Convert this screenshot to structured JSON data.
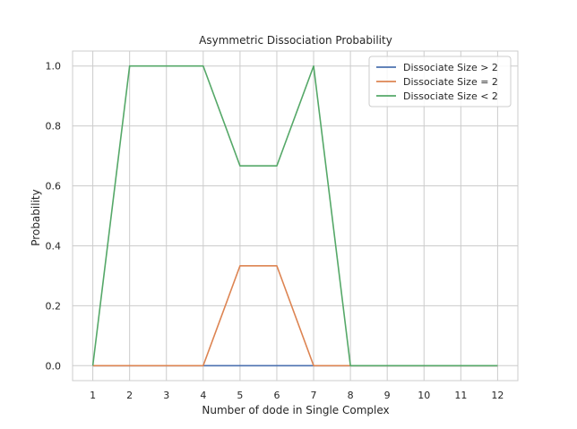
{
  "chart_data": {
    "type": "line",
    "title": "Asymmetric Dissociation Probability",
    "xlabel": "Number of dode in Single Complex",
    "ylabel": "Probability",
    "x": [
      1,
      2,
      3,
      4,
      5,
      6,
      7,
      8,
      9,
      10,
      11,
      12
    ],
    "xlim": [
      0.45,
      12.55
    ],
    "ylim": [
      -0.05,
      1.05
    ],
    "yticks": [
      0.0,
      0.2,
      0.4,
      0.6,
      0.8,
      1.0
    ],
    "ytick_labels": [
      "0.0",
      "0.2",
      "0.4",
      "0.6",
      "0.8",
      "1.0"
    ],
    "grid": true,
    "legend_position": "top-right",
    "series": [
      {
        "name": "Dissociate Size > 2",
        "color": "#4c72b0",
        "values": [
          0,
          0,
          0,
          0,
          0,
          0,
          0,
          0,
          0,
          0,
          0,
          0
        ]
      },
      {
        "name": "Dissociate Size = 2",
        "color": "#dd8452",
        "values": [
          0,
          0,
          0,
          0,
          0.3333,
          0.3333,
          0,
          0,
          0,
          0,
          0,
          0
        ]
      },
      {
        "name": "Dissociate Size < 2",
        "color": "#55a868",
        "values": [
          0,
          1,
          1,
          1,
          0.6667,
          0.6667,
          1,
          0,
          0,
          0,
          0,
          0
        ]
      }
    ]
  }
}
